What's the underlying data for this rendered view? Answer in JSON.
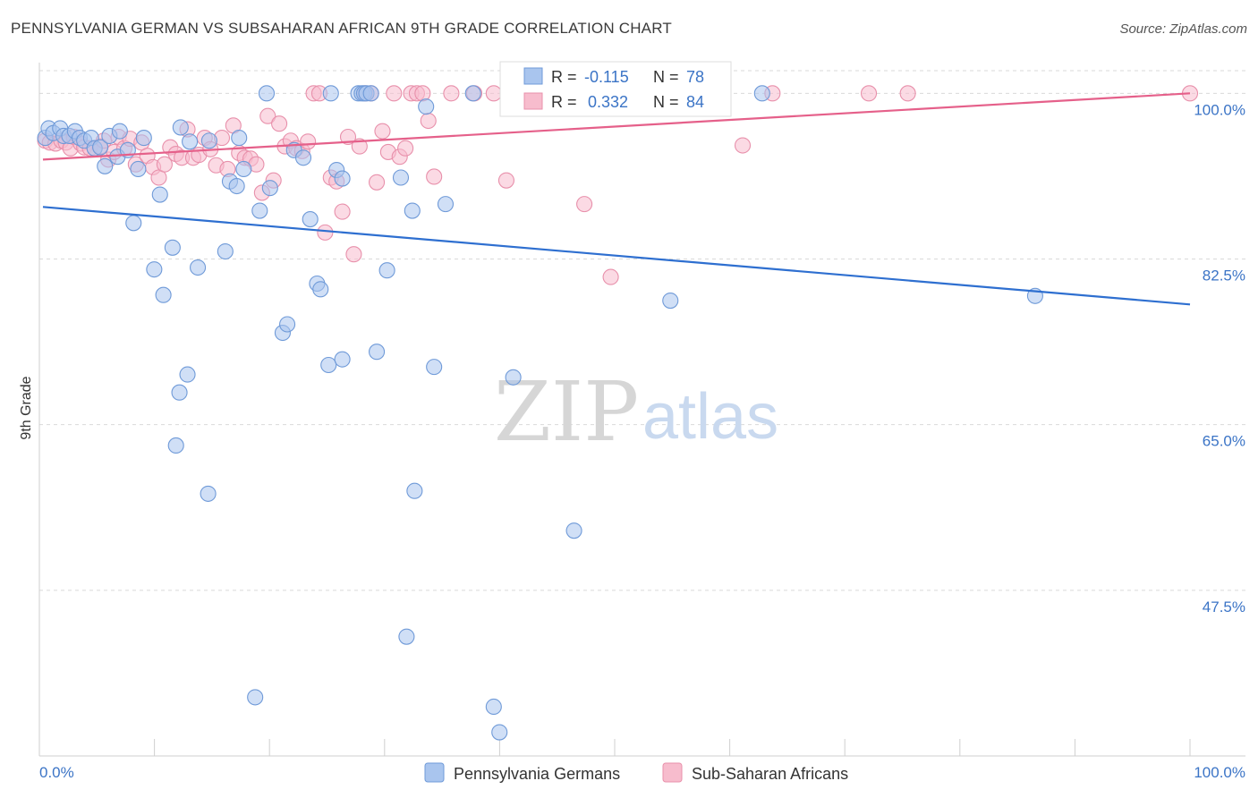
{
  "header": {
    "title": "PENNSYLVANIA GERMAN VS SUBSAHARAN AFRICAN 9TH GRADE CORRELATION CHART",
    "source": "Source: ZipAtlas.com"
  },
  "watermark": {
    "zip": "ZIP",
    "atlas": "atlas"
  },
  "stats": {
    "r_label": "R =",
    "n_label": "N =",
    "blue": {
      "r": "-0.115",
      "n": "78"
    },
    "pink": {
      "r": "0.332",
      "n": "84"
    }
  },
  "colors": {
    "blue_fill": "#a9c5ee",
    "blue_stroke": "#6f9ad8",
    "blue_line": "#2e6fd0",
    "pink_fill": "#f7bccd",
    "pink_stroke": "#e890ab",
    "pink_line": "#e5608a",
    "tick_text": "#3b74c6",
    "grid": "#d9d9d9"
  },
  "chart_data": {
    "type": "scatter",
    "title": "PENNSYLVANIA GERMAN VS SUBSAHARAN AFRICAN 9TH GRADE CORRELATION CHART",
    "xlabel": "",
    "ylabel": "9th Grade",
    "x_tick_labels": [
      "0.0%",
      "100.0%"
    ],
    "y_tick_labels": [
      "100.0%",
      "82.5%",
      "65.0%",
      "47.5%"
    ],
    "y_ticks": [
      100,
      82.5,
      65,
      47.5
    ],
    "xlim": [
      0,
      100
    ],
    "ylim": [
      30,
      102.3
    ],
    "grid": "horizontal-dashed",
    "legend_position": "bottom-center",
    "series": [
      {
        "name": "Pennsylvania Germans",
        "color": "#a9c5ee",
        "R": -0.115,
        "N": 78,
        "trend": {
          "x": [
            0,
            100
          ],
          "y": [
            88.0,
            77.7
          ]
        },
        "points": [
          [
            0.2,
            95.3
          ],
          [
            0.5,
            96.3
          ],
          [
            0.9,
            95.8
          ],
          [
            1.5,
            96.3
          ],
          [
            1.8,
            95.5
          ],
          [
            2.3,
            95.5
          ],
          [
            2.8,
            96.0
          ],
          [
            3.2,
            95.3
          ],
          [
            3.6,
            95.0
          ],
          [
            4.2,
            95.3
          ],
          [
            4.5,
            94.2
          ],
          [
            5.0,
            94.3
          ],
          [
            5.4,
            92.3
          ],
          [
            5.8,
            95.5
          ],
          [
            6.5,
            93.3
          ],
          [
            6.7,
            96.0
          ],
          [
            7.4,
            94.0
          ],
          [
            7.9,
            86.3
          ],
          [
            8.3,
            92.0
          ],
          [
            8.8,
            95.3
          ],
          [
            9.7,
            81.4
          ],
          [
            10.2,
            89.3
          ],
          [
            10.5,
            78.7
          ],
          [
            11.3,
            83.7
          ],
          [
            11.9,
            68.4
          ],
          [
            12.0,
            96.4
          ],
          [
            11.6,
            62.8
          ],
          [
            12.6,
            70.3
          ],
          [
            12.8,
            94.9
          ],
          [
            13.5,
            81.6
          ],
          [
            14.4,
            57.7
          ],
          [
            14.5,
            95.0
          ],
          [
            15.9,
            83.3
          ],
          [
            16.3,
            90.7
          ],
          [
            16.9,
            90.2
          ],
          [
            17.1,
            95.3
          ],
          [
            17.5,
            92.0
          ],
          [
            18.5,
            36.2
          ],
          [
            18.9,
            87.6
          ],
          [
            19.5,
            100.0
          ],
          [
            19.8,
            90.0
          ],
          [
            20.9,
            74.7
          ],
          [
            21.3,
            75.6
          ],
          [
            21.9,
            94.0
          ],
          [
            22.7,
            93.2
          ],
          [
            23.3,
            86.7
          ],
          [
            23.9,
            79.9
          ],
          [
            24.2,
            79.3
          ],
          [
            24.9,
            71.3
          ],
          [
            25.1,
            100.0
          ],
          [
            25.6,
            91.9
          ],
          [
            26.1,
            71.9
          ],
          [
            26.1,
            91.0
          ],
          [
            27.5,
            100.0
          ],
          [
            27.8,
            100.0
          ],
          [
            28.0,
            100.0
          ],
          [
            28.2,
            100.0
          ],
          [
            28.6,
            100.0
          ],
          [
            29.1,
            72.7
          ],
          [
            30.0,
            81.3
          ],
          [
            31.2,
            91.1
          ],
          [
            31.7,
            42.6
          ],
          [
            32.2,
            87.6
          ],
          [
            32.4,
            58.0
          ],
          [
            33.4,
            98.6
          ],
          [
            34.1,
            71.1
          ],
          [
            35.1,
            88.3
          ],
          [
            37.5,
            100.0
          ],
          [
            39.3,
            35.2
          ],
          [
            39.8,
            32.5
          ],
          [
            41.0,
            70.0
          ],
          [
            46.3,
            53.8
          ],
          [
            51.2,
            100.0
          ],
          [
            54.1,
            100.0
          ],
          [
            54.7,
            78.1
          ],
          [
            58.5,
            100.0
          ],
          [
            62.7,
            100.0
          ],
          [
            86.5,
            78.6
          ]
        ]
      },
      {
        "name": "Sub-Saharan Africans",
        "color": "#f7bccd",
        "R": 0.332,
        "N": 84,
        "trend": {
          "x": [
            0,
            100
          ],
          "y": [
            93.0,
            100.0
          ]
        },
        "points": [
          [
            0.2,
            95.0
          ],
          [
            0.6,
            94.8
          ],
          [
            1.1,
            94.7
          ],
          [
            1.6,
            95.0
          ],
          [
            2.0,
            94.8
          ],
          [
            2.4,
            94.2
          ],
          [
            2.7,
            95.4
          ],
          [
            3.3,
            94.7
          ],
          [
            3.6,
            94.3
          ],
          [
            4.1,
            94.2
          ],
          [
            4.5,
            94.2
          ],
          [
            5.0,
            94.4
          ],
          [
            5.3,
            95.0
          ],
          [
            5.7,
            93.0
          ],
          [
            6.2,
            93.8
          ],
          [
            6.6,
            95.4
          ],
          [
            7.1,
            94.2
          ],
          [
            7.6,
            95.2
          ],
          [
            8.1,
            92.5
          ],
          [
            8.6,
            94.8
          ],
          [
            9.1,
            93.4
          ],
          [
            9.6,
            92.2
          ],
          [
            10.1,
            91.1
          ],
          [
            10.6,
            92.5
          ],
          [
            11.1,
            94.3
          ],
          [
            11.6,
            93.6
          ],
          [
            12.1,
            93.2
          ],
          [
            12.6,
            96.2
          ],
          [
            13.1,
            93.2
          ],
          [
            13.6,
            93.5
          ],
          [
            14.1,
            95.3
          ],
          [
            14.6,
            94.1
          ],
          [
            15.1,
            92.4
          ],
          [
            15.6,
            95.3
          ],
          [
            16.1,
            92.0
          ],
          [
            16.6,
            96.6
          ],
          [
            17.1,
            93.7
          ],
          [
            17.6,
            93.2
          ],
          [
            18.1,
            93.1
          ],
          [
            18.6,
            92.5
          ],
          [
            19.1,
            89.5
          ],
          [
            19.6,
            97.6
          ],
          [
            20.1,
            90.8
          ],
          [
            20.6,
            96.8
          ],
          [
            21.1,
            94.4
          ],
          [
            21.6,
            95.0
          ],
          [
            22.1,
            94.2
          ],
          [
            22.6,
            93.9
          ],
          [
            23.1,
            94.9
          ],
          [
            23.6,
            100.0
          ],
          [
            24.1,
            100.0
          ],
          [
            24.6,
            85.3
          ],
          [
            25.1,
            91.1
          ],
          [
            25.6,
            90.7
          ],
          [
            26.1,
            87.5
          ],
          [
            26.6,
            95.4
          ],
          [
            27.1,
            83.0
          ],
          [
            27.6,
            94.4
          ],
          [
            28.1,
            100.0
          ],
          [
            28.6,
            100.0
          ],
          [
            29.1,
            90.6
          ],
          [
            29.6,
            96.0
          ],
          [
            30.1,
            93.8
          ],
          [
            30.6,
            100.0
          ],
          [
            31.1,
            93.3
          ],
          [
            31.6,
            94.2
          ],
          [
            32.1,
            100.0
          ],
          [
            32.6,
            100.0
          ],
          [
            33.1,
            100.0
          ],
          [
            33.6,
            97.1
          ],
          [
            34.1,
            91.2
          ],
          [
            35.6,
            100.0
          ],
          [
            37.6,
            100.0
          ],
          [
            39.3,
            100.0
          ],
          [
            40.4,
            90.8
          ],
          [
            41.4,
            99.3
          ],
          [
            43.6,
            99.6
          ],
          [
            47.2,
            88.3
          ],
          [
            49.5,
            80.6
          ],
          [
            61.0,
            94.5
          ],
          [
            63.6,
            100.0
          ],
          [
            72.0,
            100.0
          ],
          [
            75.4,
            100.0
          ],
          [
            100.0,
            100.0
          ]
        ]
      }
    ]
  }
}
